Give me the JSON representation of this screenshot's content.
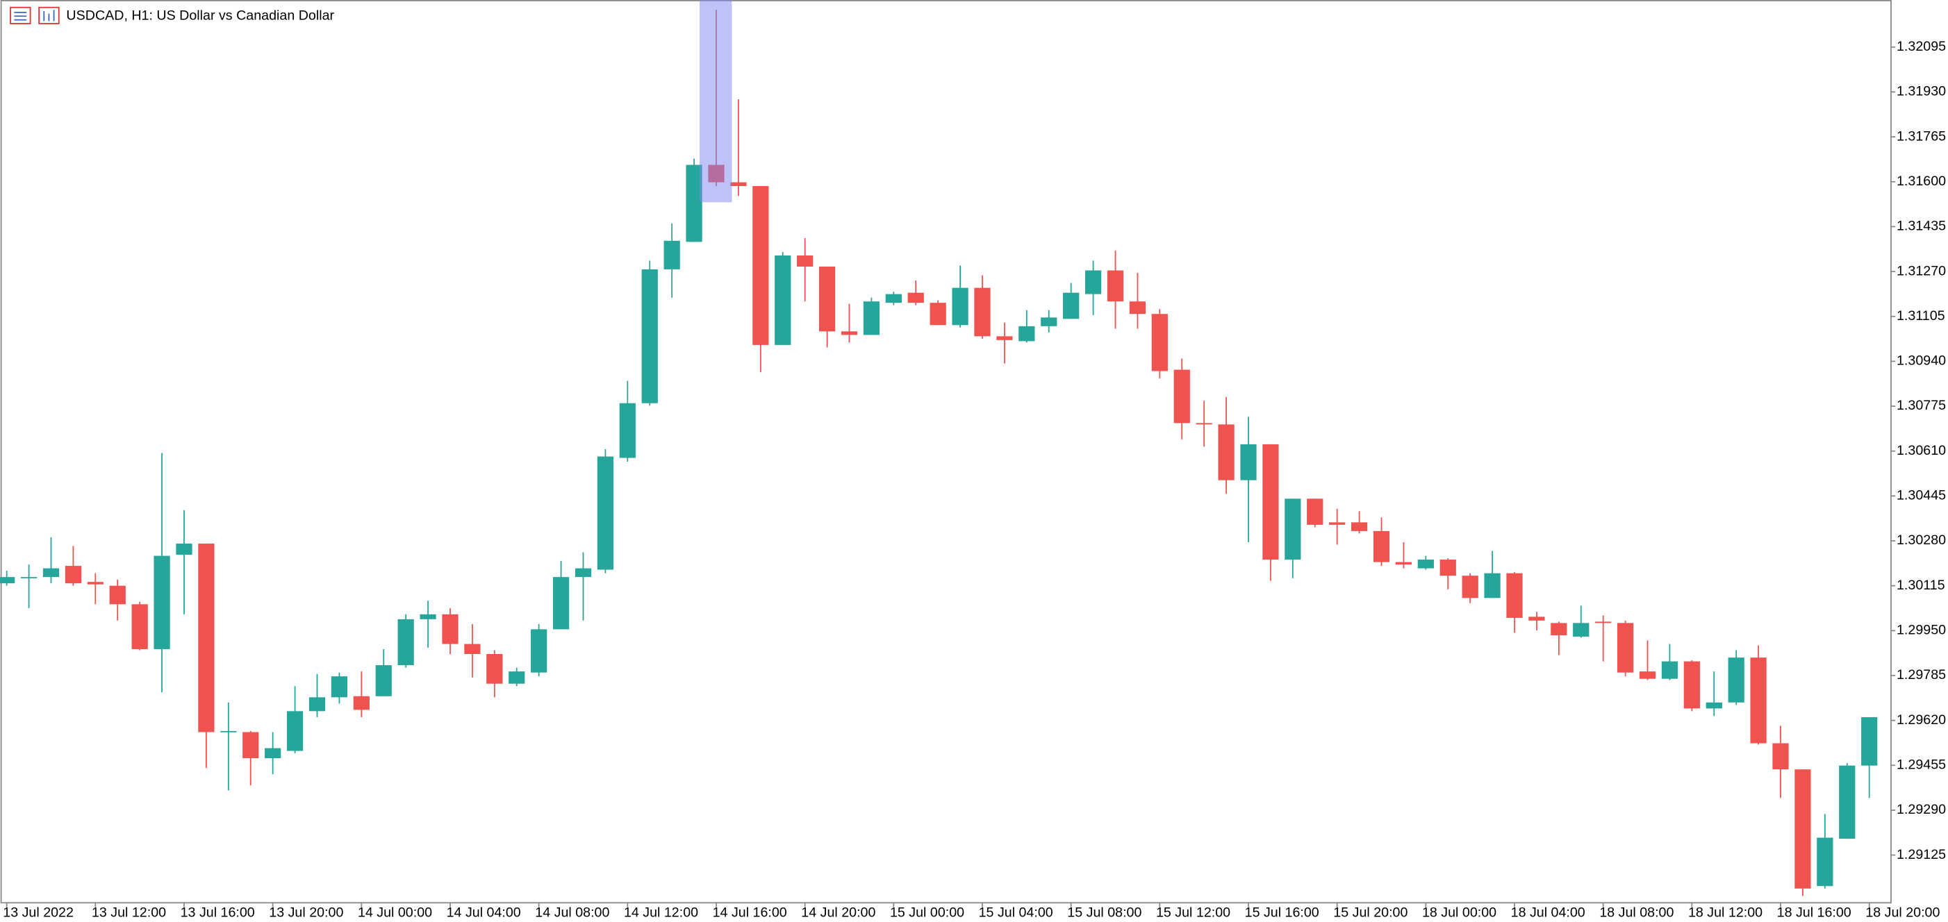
{
  "chart_data": {
    "type": "candlestick",
    "title": "USDCAD, H1:  US Dollar vs Canadian Dollar",
    "categories": [
      "13 Jul 2022",
      null,
      null,
      null,
      "13 Jul 12:00",
      null,
      null,
      null,
      "13 Jul 16:00",
      null,
      null,
      null,
      "13 Jul 20:00",
      null,
      null,
      null,
      "14 Jul 00:00",
      null,
      null,
      null,
      "14 Jul 04:00",
      null,
      null,
      null,
      "14 Jul 08:00",
      null,
      null,
      null,
      "14 Jul 12:00",
      null,
      null,
      null,
      "14 Jul 16:00",
      null,
      null,
      null,
      "14 Jul 20:00",
      null,
      null,
      null,
      "15 Jul 00:00",
      null,
      null,
      null,
      "15 Jul 04:00",
      null,
      null,
      null,
      "15 Jul 08:00",
      null,
      null,
      null,
      "15 Jul 12:00",
      null,
      null,
      null,
      "15 Jul 16:00",
      null,
      null,
      null,
      "15 Jul 20:00",
      null,
      null,
      null,
      "18 Jul 00:00",
      null,
      null,
      null,
      "18 Jul 04:00",
      null,
      null,
      null,
      "18 Jul 08:00",
      null,
      null,
      null,
      "18 Jul 12:00",
      null,
      null,
      null,
      "18 Jul 16:00",
      null,
      null,
      null,
      "18 Jul 20:00"
    ],
    "open": [
      1.30124,
      1.30143,
      1.30147,
      1.30188,
      1.30129,
      1.30115,
      1.30047,
      1.29882,
      1.30229,
      1.3027,
      1.29577,
      1.29577,
      1.29481,
      1.29508,
      1.29654,
      1.29705,
      1.29709,
      1.29709,
      1.29823,
      1.29992,
      1.3001,
      1.29901,
      1.29864,
      1.29755,
      1.29796,
      1.29955,
      1.30147,
      1.30174,
      1.30585,
      1.30786,
      1.31278,
      1.31379,
      1.31662,
      1.31598,
      1.31584,
      1.31,
      1.31329,
      1.31288,
      1.3105,
      1.31037,
      1.31155,
      1.31192,
      1.31155,
      1.31073,
      1.3121,
      1.31032,
      1.31014,
      1.31069,
      1.31096,
      1.31187,
      1.31274,
      1.3116,
      1.31114,
      1.30909,
      1.30713,
      1.30708,
      1.30503,
      1.30635,
      1.30211,
      1.30435,
      1.30348,
      1.30348,
      1.30316,
      1.30202,
      1.30179,
      1.30211,
      1.30152,
      1.3007,
      1.30161,
      1.30001,
      1.29978,
      1.29928,
      1.29983,
      1.29978,
      1.298,
      1.29773,
      1.29837,
      1.29664,
      1.29686,
      1.29851,
      1.29536,
      1.2944,
      1.29011,
      1.29185,
      1.29454
    ],
    "high": [
      1.3017,
      1.30193,
      1.30293,
      1.30261,
      1.30161,
      1.30138,
      1.30056,
      1.30603,
      1.30393,
      1.3027,
      1.29686,
      1.29581,
      1.29577,
      1.29746,
      1.29791,
      1.29796,
      1.298,
      1.29882,
      1.3001,
      1.3006,
      1.30033,
      1.29974,
      1.29878,
      1.29814,
      1.29974,
      1.30206,
      1.30238,
      1.30617,
      1.30868,
      1.3131,
      1.31447,
      1.31685,
      1.32232,
      1.31903,
      1.31584,
      1.31342,
      1.31393,
      1.31288,
      1.31151,
      1.31174,
      1.31196,
      1.31237,
      1.31164,
      1.31292,
      1.31256,
      1.31082,
      1.31128,
      1.31128,
      1.31228,
      1.3131,
      1.31347,
      1.31265,
      1.31132,
      1.3095,
      1.30795,
      1.30809,
      1.30736,
      1.30635,
      1.30435,
      1.30435,
      1.30398,
      1.30389,
      1.30366,
      1.30275,
      1.30225,
      1.30216,
      1.30161,
      1.30243,
      1.30165,
      1.30019,
      1.29983,
      1.30042,
      1.30006,
      1.29987,
      1.29914,
      1.29901,
      1.29841,
      1.298,
      1.29878,
      1.29896,
      1.296,
      1.2944,
      1.29276,
      1.29463,
      1.29632
    ],
    "low": [
      1.30115,
      1.30033,
      1.30124,
      1.30115,
      1.30047,
      1.29987,
      1.29878,
      1.29723,
      1.3001,
      1.29445,
      1.29363,
      1.29381,
      1.29422,
      1.29499,
      1.29632,
      1.29682,
      1.29632,
      1.29709,
      1.29814,
      1.29887,
      1.29864,
      1.29778,
      1.29705,
      1.29746,
      1.29782,
      1.29955,
      1.29987,
      1.30161,
      1.30571,
      1.30777,
      1.31174,
      1.31379,
      1.31584,
      1.31548,
      1.309,
      1.31,
      1.3116,
      1.30991,
      1.31009,
      1.31037,
      1.31146,
      1.31146,
      1.31073,
      1.31064,
      1.31023,
      1.30932,
      1.31009,
      1.31046,
      1.31096,
      1.3111,
      1.3106,
      1.3106,
      1.30877,
      1.30653,
      1.30626,
      1.30453,
      1.30275,
      1.30133,
      1.30143,
      1.3033,
      1.30266,
      1.30307,
      1.30188,
      1.30179,
      1.30174,
      1.30102,
      1.30051,
      1.3007,
      1.29942,
      1.29951,
      1.2986,
      1.29924,
      1.29837,
      1.29782,
      1.29768,
      1.29768,
      1.29654,
      1.29636,
      1.29677,
      1.29531,
      1.29335,
      1.28975,
      1.29002,
      1.29185,
      1.29335
    ],
    "close": [
      1.30147,
      1.30147,
      1.30179,
      1.30124,
      1.3012,
      1.30047,
      1.29882,
      1.30225,
      1.3027,
      1.29577,
      1.29581,
      1.29481,
      1.29518,
      1.29654,
      1.29705,
      1.29782,
      1.29659,
      1.29823,
      1.29992,
      1.3001,
      1.29901,
      1.29864,
      1.29755,
      1.298,
      1.29955,
      1.30147,
      1.30179,
      1.3059,
      1.30786,
      1.31278,
      1.31383,
      1.31662,
      1.31598,
      1.31584,
      1.31,
      1.31329,
      1.31288,
      1.3105,
      1.31037,
      1.3116,
      1.31187,
      1.31155,
      1.31073,
      1.3121,
      1.31032,
      1.31018,
      1.31069,
      1.31101,
      1.31192,
      1.31274,
      1.3116,
      1.31114,
      1.30904,
      1.30713,
      1.30708,
      1.30503,
      1.30635,
      1.30211,
      1.30435,
      1.30339,
      1.30339,
      1.30316,
      1.30202,
      1.30193,
      1.30211,
      1.30152,
      1.3007,
      1.30161,
      1.29997,
      1.29987,
      1.29933,
      1.29978,
      1.29978,
      1.29796,
      1.29773,
      1.29837,
      1.29664,
      1.29686,
      1.29851,
      1.29536,
      1.2944,
      1.29002,
      1.29189,
      1.29454,
      1.29632
    ],
    "up_color": "#26a69a",
    "down_color": "#ef5350",
    "ylim": [
      1.28952,
      1.32268
    ],
    "yticks": [
      {
        "value": 1.32095,
        "label": "1.32095"
      },
      {
        "value": 1.3193,
        "label": "1.31930"
      },
      {
        "value": 1.31765,
        "label": "1.31765"
      },
      {
        "value": 1.316,
        "label": "1.31600"
      },
      {
        "value": 1.31435,
        "label": "1.31435"
      },
      {
        "value": 1.3127,
        "label": "1.31270"
      },
      {
        "value": 1.31105,
        "label": "1.31105"
      },
      {
        "value": 1.3094,
        "label": "1.30940"
      },
      {
        "value": 1.30775,
        "label": "1.30775"
      },
      {
        "value": 1.3061,
        "label": "1.30610"
      },
      {
        "value": 1.30445,
        "label": "1.30445"
      },
      {
        "value": 1.3028,
        "label": "1.30280"
      },
      {
        "value": 1.30115,
        "label": "1.30115"
      },
      {
        "value": 1.2995,
        "label": "1.29950"
      },
      {
        "value": 1.29785,
        "label": "1.29785"
      },
      {
        "value": 1.2962,
        "label": "1.29620"
      },
      {
        "value": 1.29455,
        "label": "1.29455"
      },
      {
        "value": 1.2929,
        "label": "1.29290"
      },
      {
        "value": 1.29125,
        "label": "1.29125"
      }
    ],
    "grid": false
  }
}
